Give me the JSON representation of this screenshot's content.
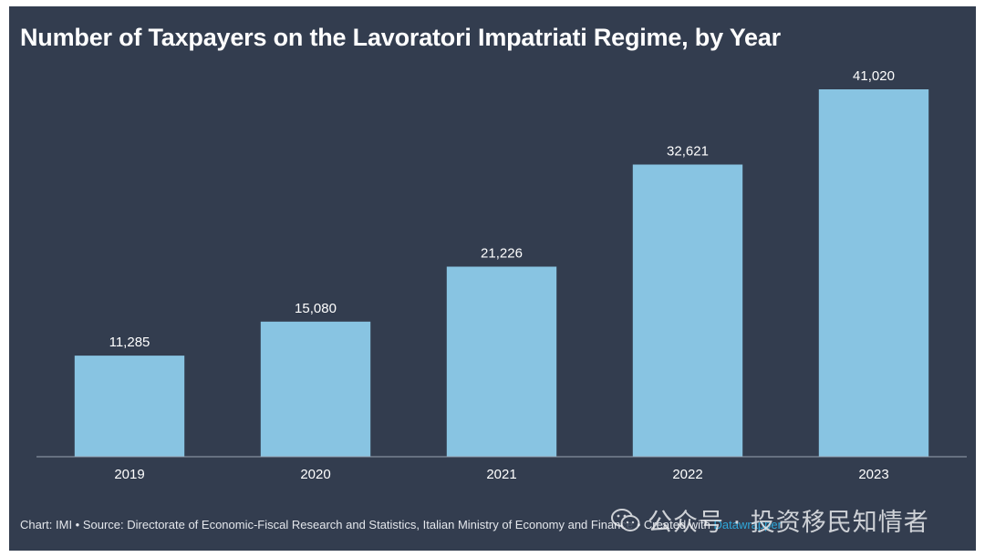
{
  "chart_data": {
    "type": "bar",
    "title": "Number of Taxpayers on the Lavoratori Impatriati Regime, by Year",
    "categories": [
      "2019",
      "2020",
      "2021",
      "2022",
      "2023"
    ],
    "values": [
      11285,
      15080,
      21226,
      32621,
      41020
    ],
    "value_labels": [
      "11,285",
      "15,080",
      "21,226",
      "32,621",
      "41,020"
    ],
    "xlabel": "",
    "ylabel": "",
    "ylim": [
      0,
      41020
    ],
    "grid": false,
    "legend": "none"
  },
  "colors": {
    "background": "#333d4f",
    "bar": "#88c4e2",
    "text": "#ffffff",
    "baseline": "#9aa3b1"
  },
  "footer": {
    "text": "Chart: IMI • Source: Directorate of Economic-Fiscal Research and Statistics, Italian Ministry of Economy and Finance • Created with ",
    "brand": "Datawrapper"
  },
  "watermark": {
    "icon": "wechat-icon",
    "text": "公众号 · 投资移民知情者"
  }
}
